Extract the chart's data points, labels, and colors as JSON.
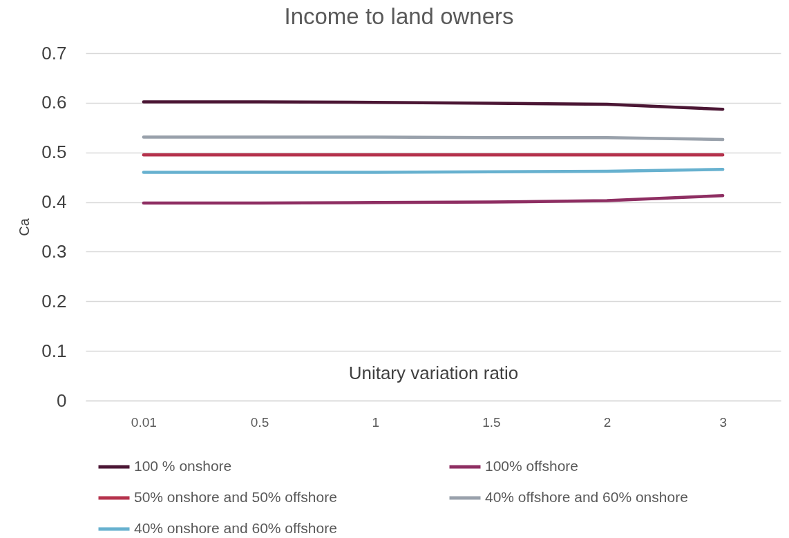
{
  "chart_data": {
    "type": "line",
    "title": "Income to land owners",
    "xlabel": "Unitary variation ratio",
    "ylabel": "Ca",
    "categories": [
      "0.01",
      "0.5",
      "1",
      "1.5",
      "2",
      "3"
    ],
    "series": [
      {
        "name": "100 % onshore",
        "color": "#4b1634",
        "values": [
          0.602,
          0.602,
          0.601,
          0.599,
          0.597,
          0.587
        ]
      },
      {
        "name": "100% offshore",
        "color": "#8e2e62",
        "values": [
          0.398,
          0.398,
          0.399,
          0.4,
          0.403,
          0.413
        ]
      },
      {
        "name": "50% onshore and 50% offshore",
        "color": "#b5324c",
        "values": [
          0.495,
          0.495,
          0.495,
          0.495,
          0.495,
          0.495
        ]
      },
      {
        "name": "40% offshore and 60% onshore",
        "color": "#99a1ab",
        "values": [
          0.531,
          0.531,
          0.531,
          0.53,
          0.53,
          0.526
        ]
      },
      {
        "name": "40% onshore and 60% offshore",
        "color": "#67b1cf",
        "values": [
          0.46,
          0.46,
          0.46,
          0.461,
          0.462,
          0.466
        ]
      }
    ],
    "ylim": [
      0,
      0.7
    ],
    "yticks": [
      0,
      0.1,
      0.2,
      0.3,
      0.4,
      0.5,
      0.6,
      0.7
    ],
    "grid": "y",
    "legend": "bottom"
  }
}
